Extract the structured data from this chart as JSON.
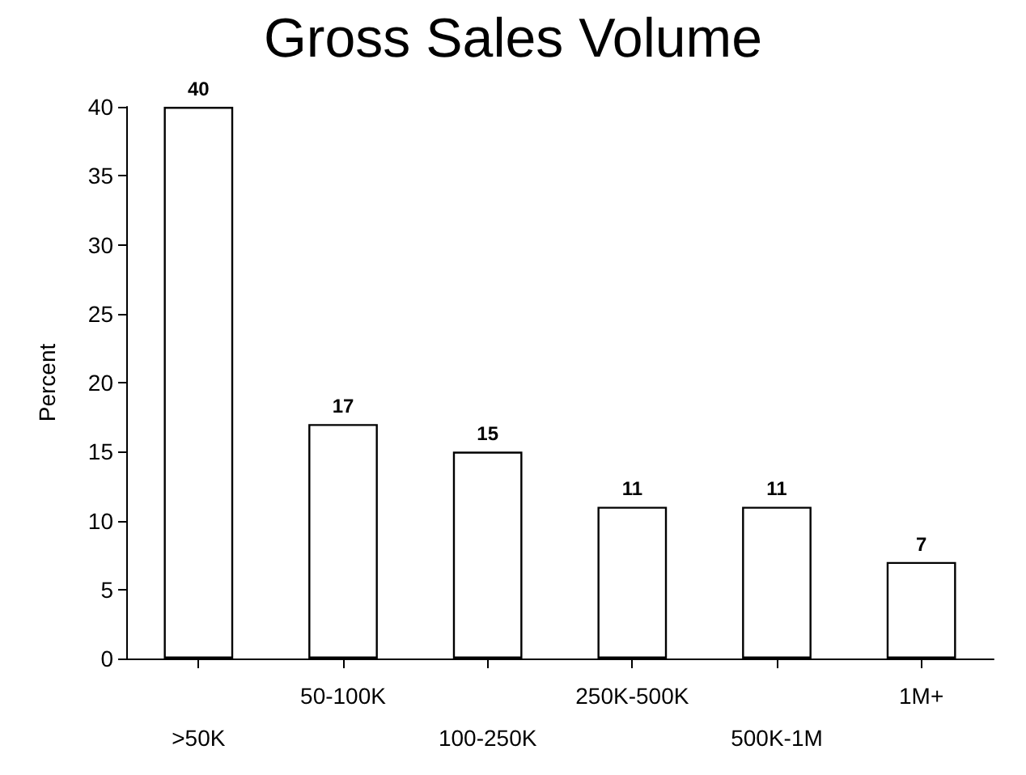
{
  "chart_data": {
    "type": "bar",
    "title": "Gross Sales Volume",
    "ylabel": "Percent",
    "categories": [
      ">50K",
      "50-100K",
      "100-250K",
      "250K-500K",
      "500K-1M",
      "1M+"
    ],
    "values": [
      40,
      17,
      15,
      11,
      11,
      7
    ],
    "color": "#ffffff",
    "ylim": [
      0,
      40
    ],
    "yticks": [
      0,
      5,
      10,
      15,
      20,
      25,
      30,
      35,
      40
    ],
    "grid": false,
    "data_labels": true
  }
}
